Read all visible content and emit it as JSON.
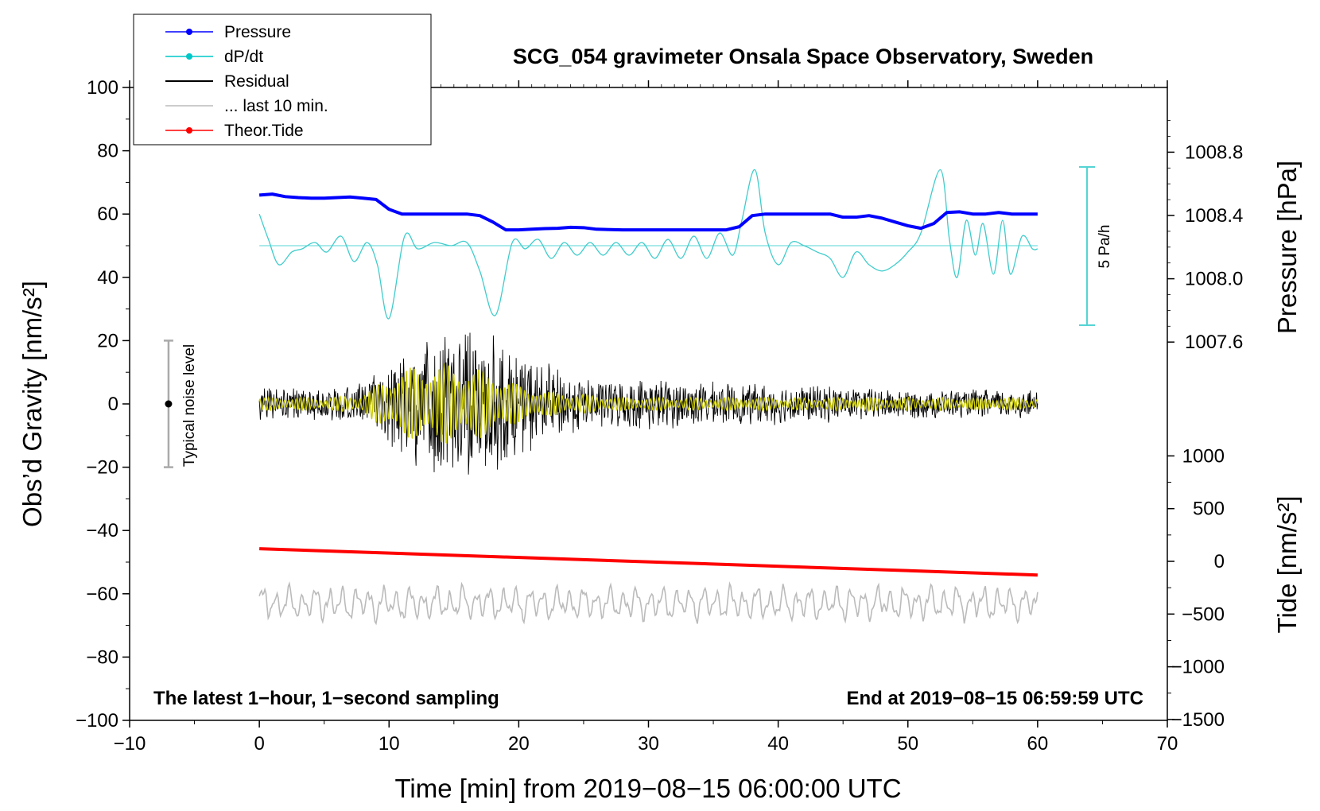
{
  "chart_data": {
    "type": "line",
    "title": "SCG_054 gravimeter Onsala Space Observatory, Sweden",
    "xlabel": "Time [min] from 2019−08−15 06:00:00 UTC",
    "ylabel_left": "Obs’d Gravity [nm/s²]",
    "ylabel_right_top": "Pressure [hPa]",
    "ylabel_right_bottom": "Tide [nm/s²]",
    "xlim": [
      -10,
      70
    ],
    "ylim": [
      -100,
      100
    ],
    "x_ticks": [
      "−10",
      "0",
      "10",
      "20",
      "30",
      "40",
      "50",
      "60",
      "70"
    ],
    "y_ticks": [
      "100",
      "80",
      "60",
      "40",
      "20",
      "0",
      "−20",
      "−40",
      "−60",
      "−80",
      "−100"
    ],
    "pressure_ticks": [
      "1008.8",
      "1008.4",
      "1008.0",
      "1007.6"
    ],
    "tide_ticks": [
      "1000",
      "500",
      "0",
      "−500",
      "−1000",
      "−1500"
    ],
    "note_left": "The latest 1−hour, 1−second sampling",
    "note_right": "End at 2019−08−15 06:59:59 UTC",
    "dpdt_scale_label": "5 Pa/h",
    "noise_label": "Typical noise level",
    "noise_bar": {
      "x": -7,
      "center": 0,
      "range": [
        -20,
        20
      ]
    },
    "legend": [
      {
        "label": "Pressure",
        "color": "#0000ff",
        "marker": true
      },
      {
        "label": "dP/dt",
        "color": "#00c8c8",
        "marker": true
      },
      {
        "label": "Residual",
        "color": "#000000",
        "marker": false
      },
      {
        "label": "... last 10 min.",
        "color": "#bbbbbb",
        "marker": false
      },
      {
        "label": "Theor.Tide",
        "color": "#ff0000",
        "marker": true
      }
    ],
    "series": [
      {
        "name": "Pressure",
        "color": "#0000ff",
        "units": "nm/s2 plot scale",
        "x": [
          0,
          1,
          2,
          3,
          4,
          5,
          6,
          7,
          8,
          9,
          10,
          11,
          12,
          13,
          14,
          15,
          16,
          17,
          18,
          19,
          20,
          21,
          22,
          23,
          24,
          25,
          26,
          28,
          30,
          32,
          34,
          35,
          36,
          37,
          38,
          39,
          40,
          42,
          44,
          45,
          46,
          47,
          48,
          49,
          50,
          51,
          52,
          53,
          54,
          55,
          56,
          57,
          58,
          59,
          60
        ],
        "values": [
          66,
          66.3,
          65.5,
          65.2,
          65,
          65,
          65.2,
          65.4,
          65,
          64.6,
          61.5,
          60,
          60,
          60,
          60,
          60,
          60,
          59.5,
          57.5,
          55,
          55,
          55.2,
          55.4,
          55.5,
          55.8,
          55.7,
          55.2,
          55,
          55,
          55,
          55,
          55,
          55,
          56,
          59.5,
          60,
          60,
          60,
          60,
          59,
          59,
          59.5,
          58.7,
          57.5,
          56.3,
          55.5,
          57,
          60.5,
          60.7,
          60,
          60,
          60.5,
          60,
          60,
          60
        ]
      },
      {
        "name": "dP/dt",
        "color": "#00c8c8",
        "baseline": 50,
        "units": "nm/s2 plot scale",
        "x": [
          0,
          0.7,
          1.5,
          2.5,
          3.3,
          4.3,
          5.2,
          6.3,
          7.3,
          8.3,
          9.1,
          10.0,
          11.2,
          12.2,
          13.5,
          14.8,
          16.0,
          17.0,
          18.2,
          19.5,
          20.5,
          21.5,
          22.5,
          23.5,
          24.5,
          25.5,
          26.5,
          27.5,
          28.5,
          29.5,
          30.5,
          31.5,
          32.5,
          33.5,
          34.5,
          35.5,
          36.5,
          37.2,
          38.2,
          39.0,
          40.0,
          41.0,
          42.0,
          43.0,
          44.0,
          45.0,
          46.0,
          47.0,
          48.0,
          49.0,
          50.0,
          51.0,
          52.5,
          53.2,
          53.8,
          54.5,
          55.2,
          55.8,
          56.6,
          57.3,
          57.9,
          58.8,
          59.6,
          60
        ],
        "values": [
          60,
          52,
          44,
          48,
          49,
          51,
          48,
          53,
          45,
          51,
          44,
          27,
          53,
          49,
          51,
          50,
          51,
          42,
          28,
          51,
          49,
          52,
          46,
          51,
          47,
          51,
          47,
          51,
          47,
          51,
          46,
          52,
          46,
          53,
          46,
          54,
          47,
          58,
          74,
          54,
          44,
          51,
          50,
          48,
          46,
          40,
          48,
          44,
          42,
          44,
          48,
          54,
          74,
          52,
          40,
          58,
          47,
          57,
          41,
          58,
          41,
          53,
          49,
          49
        ]
      },
      {
        "name": "Residual",
        "color": "#000000",
        "units": "nm/s2",
        "envelope_x": [
          0,
          5,
          8,
          10,
          12,
          14,
          16,
          18,
          20,
          22,
          25,
          28,
          30,
          33,
          36,
          40,
          45,
          50,
          55,
          60
        ],
        "envelope_amplitude": [
          6,
          6,
          7,
          14,
          20,
          24,
          26,
          24,
          18,
          14,
          9,
          8,
          9,
          8,
          7,
          7,
          6,
          5,
          5,
          5
        ]
      },
      {
        "name": "Filtered",
        "color": "#cccc00",
        "units": "nm/s2",
        "envelope_x": [
          0,
          5,
          8,
          10,
          12,
          14,
          16,
          18,
          20,
          22,
          25,
          28,
          30,
          33,
          36,
          40,
          45,
          50,
          55,
          60
        ],
        "envelope_amplitude": [
          2,
          2,
          3,
          9,
          12,
          13,
          12,
          10,
          6,
          4,
          3,
          2,
          2,
          2,
          2,
          2,
          2,
          2,
          2,
          2
        ]
      },
      {
        "name": "... last 10 min.",
        "color": "#bbbbbb",
        "units": "nm/s2 plot scale",
        "center": -63,
        "amplitude": 3.5,
        "x_range": [
          0,
          60
        ]
      },
      {
        "name": "Theor.Tide",
        "color": "#ff0000",
        "units": "nm/s2",
        "x": [
          0,
          60
        ],
        "values": [
          120,
          -130
        ]
      }
    ]
  }
}
